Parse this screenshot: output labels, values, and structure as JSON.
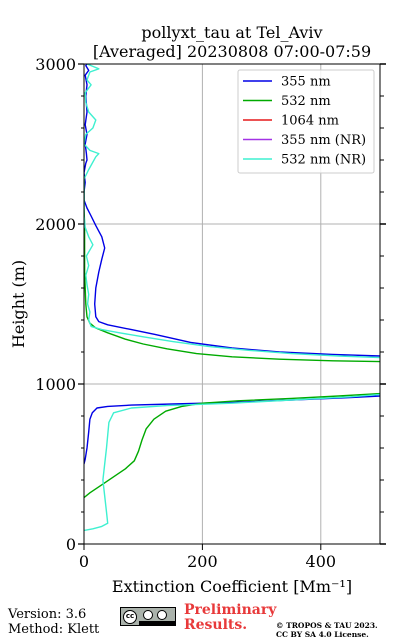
{
  "chart_data": {
    "type": "line",
    "title": "pollyxt_tau at Tel_Aviv",
    "subtitle": "[Averaged] 20230808 07:00-07:59",
    "xlabel": "Extinction Coefficient [Mm⁻¹]",
    "ylabel": "Height (m)",
    "xlim": [
      0,
      500
    ],
    "ylim": [
      0,
      3000
    ],
    "xticks": [
      "0",
      "200",
      "400"
    ],
    "yticks": [
      "0",
      "1000",
      "2000",
      "3000"
    ],
    "grid": true,
    "legend_position": "top-right",
    "series": [
      {
        "name": "355 nm",
        "color": "#0000e6",
        "points": [
          [
            0,
            500
          ],
          [
            2,
            530
          ],
          [
            5,
            600
          ],
          [
            8,
            700
          ],
          [
            10,
            780
          ],
          [
            14,
            820
          ],
          [
            22,
            850
          ],
          [
            40,
            860
          ],
          [
            80,
            868
          ],
          [
            150,
            875
          ],
          [
            250,
            885
          ],
          [
            350,
            900
          ],
          [
            450,
            915
          ],
          [
            500,
            925
          ],
          [
            null,
            null
          ],
          [
            500,
            1175
          ],
          [
            420,
            1185
          ],
          [
            330,
            1200
          ],
          [
            250,
            1225
          ],
          [
            180,
            1260
          ],
          [
            120,
            1310
          ],
          [
            80,
            1340
          ],
          [
            40,
            1370
          ],
          [
            25,
            1390
          ],
          [
            20,
            1420
          ],
          [
            18,
            1500
          ],
          [
            20,
            1600
          ],
          [
            25,
            1700
          ],
          [
            30,
            1780
          ],
          [
            35,
            1850
          ],
          [
            30,
            1920
          ],
          [
            20,
            1990
          ],
          [
            12,
            2050
          ],
          [
            5,
            2100
          ],
          [
            2,
            2130
          ],
          [
            0,
            2150
          ],
          [
            0,
            2200
          ],
          [
            2,
            2260
          ],
          [
            0,
            2320
          ],
          [
            3,
            2380
          ],
          [
            5,
            2400
          ],
          [
            4,
            2440
          ],
          [
            2,
            2500
          ],
          [
            5,
            2560
          ],
          [
            2,
            2620
          ],
          [
            5,
            2700
          ],
          [
            3,
            2800
          ],
          [
            5,
            2870
          ],
          [
            2,
            2930
          ],
          [
            8,
            2960
          ],
          [
            3,
            2990
          ],
          [
            5,
            3000
          ]
        ]
      },
      {
        "name": "532 nm",
        "color": "#00aa00",
        "points": [
          [
            0,
            290
          ],
          [
            10,
            320
          ],
          [
            30,
            370
          ],
          [
            50,
            420
          ],
          [
            70,
            470
          ],
          [
            85,
            520
          ],
          [
            92,
            580
          ],
          [
            98,
            650
          ],
          [
            105,
            720
          ],
          [
            118,
            780
          ],
          [
            138,
            830
          ],
          [
            165,
            860
          ],
          [
            200,
            880
          ],
          [
            260,
            895
          ],
          [
            350,
            910
          ],
          [
            430,
            925
          ],
          [
            500,
            940
          ],
          [
            null,
            null
          ],
          [
            500,
            1140
          ],
          [
            420,
            1145
          ],
          [
            330,
            1155
          ],
          [
            250,
            1170
          ],
          [
            190,
            1190
          ],
          [
            140,
            1220
          ],
          [
            100,
            1250
          ],
          [
            70,
            1280
          ],
          [
            40,
            1320
          ],
          [
            20,
            1350
          ],
          [
            10,
            1380
          ],
          [
            5,
            1420
          ],
          [
            3,
            1500
          ],
          [
            2,
            1600
          ],
          [
            1,
            1700
          ],
          [
            1,
            1800
          ],
          [
            1,
            1900
          ],
          [
            1,
            2000
          ],
          [
            0,
            2100
          ],
          [
            0,
            2200
          ],
          [
            0,
            2300
          ]
        ]
      },
      {
        "name": "1064 nm",
        "color": "#e6191a",
        "points": []
      },
      {
        "name": "355 nm (NR)",
        "color": "#a333e6",
        "points": []
      },
      {
        "name": "532 nm (NR)",
        "color": "#3ef0d0",
        "points": [
          [
            0,
            85
          ],
          [
            15,
            95
          ],
          [
            30,
            110
          ],
          [
            40,
            130
          ],
          [
            38,
            200
          ],
          [
            35,
            300
          ],
          [
            32,
            400
          ],
          [
            35,
            500
          ],
          [
            38,
            600
          ],
          [
            40,
            680
          ],
          [
            42,
            760
          ],
          [
            50,
            820
          ],
          [
            80,
            850
          ],
          [
            140,
            865
          ],
          [
            250,
            880
          ],
          [
            350,
            900
          ],
          [
            450,
            920
          ],
          [
            500,
            935
          ],
          [
            null,
            null
          ],
          [
            500,
            1165
          ],
          [
            430,
            1175
          ],
          [
            350,
            1190
          ],
          [
            280,
            1210
          ],
          [
            210,
            1235
          ],
          [
            150,
            1265
          ],
          [
            100,
            1295
          ],
          [
            60,
            1320
          ],
          [
            30,
            1340
          ],
          [
            12,
            1360
          ],
          [
            8,
            1400
          ],
          [
            10,
            1450
          ],
          [
            6,
            1500
          ],
          [
            8,
            1560
          ],
          [
            5,
            1620
          ],
          [
            3,
            1680
          ],
          [
            8,
            1740
          ],
          [
            4,
            1800
          ],
          [
            15,
            1870
          ],
          [
            8,
            1920
          ],
          [
            2,
            1980
          ],
          [
            0,
            2050
          ],
          [
            0,
            2120
          ],
          [
            0,
            2200
          ],
          [
            0,
            2280
          ],
          [
            8,
            2340
          ],
          [
            20,
            2420
          ],
          [
            25,
            2440
          ],
          [
            10,
            2460
          ],
          [
            0,
            2500
          ],
          [
            3,
            2560
          ],
          [
            15,
            2600
          ],
          [
            20,
            2650
          ],
          [
            8,
            2700
          ],
          [
            3,
            2760
          ],
          [
            2,
            2820
          ],
          [
            12,
            2870
          ],
          [
            5,
            2900
          ],
          [
            10,
            2950
          ],
          [
            25,
            2970
          ],
          [
            15,
            2985
          ],
          [
            5,
            3000
          ]
        ]
      }
    ]
  },
  "footer": {
    "version": "Version: 3.6",
    "method": "Method: Klett",
    "preliminary_line1": "Preliminary",
    "preliminary_line2": "Results.",
    "copyright_line1": "© TROPOS & TAU 2023.",
    "copyright_line2": "CC BY SA 4.0 License.",
    "license_badge": "cc by sa"
  }
}
